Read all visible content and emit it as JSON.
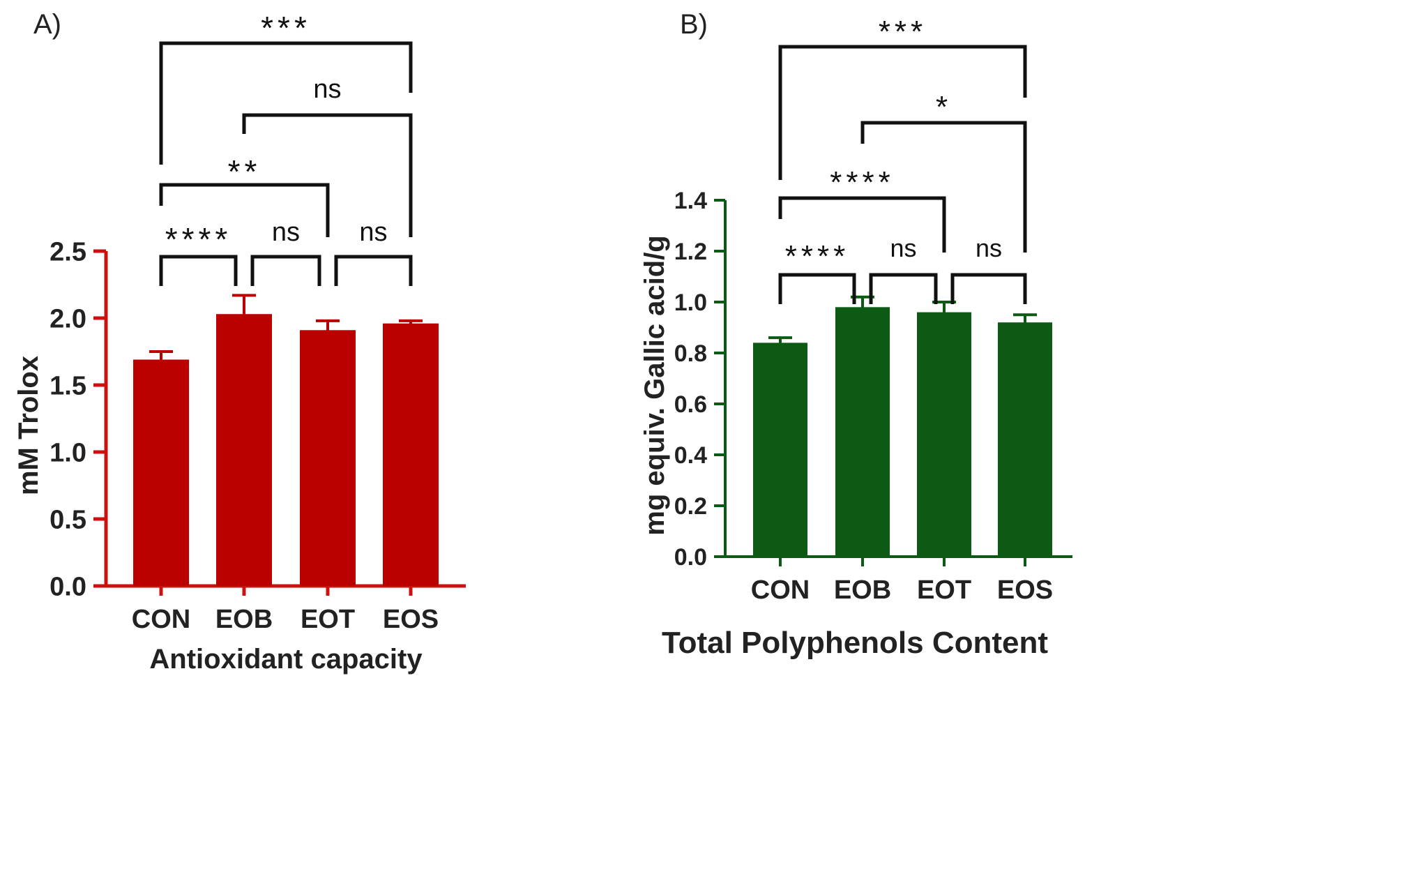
{
  "chart_data": [
    {
      "panel": "A)",
      "type": "bar",
      "categories": [
        "CON",
        "EOB",
        "EOT",
        "EOS"
      ],
      "values": [
        1.69,
        2.03,
        1.91,
        1.96
      ],
      "errors": [
        0.06,
        0.14,
        0.07,
        0.02
      ],
      "xlabel": "Antioxidant capacity",
      "ylabel": "mM Trolox",
      "ylim": [
        0,
        2.5
      ],
      "yticks": [
        0.0,
        0.5,
        1.0,
        1.5,
        2.0,
        2.5
      ],
      "ytick_labels": [
        "0.0",
        "0.5",
        "1.0",
        "1.5",
        "2.0",
        "2.5"
      ],
      "colors": {
        "bar": "#bb0000",
        "axis": "#cc1111"
      },
      "comparisons": [
        {
          "from": 0,
          "to": 1,
          "label": "****"
        },
        {
          "from": 1,
          "to": 2,
          "label": "ns"
        },
        {
          "from": 2,
          "to": 3,
          "label": "ns"
        },
        {
          "from": 0,
          "to": 2,
          "label": "**"
        },
        {
          "from": 1,
          "to": 3,
          "label": "ns"
        },
        {
          "from": 0,
          "to": 3,
          "label": "***"
        }
      ]
    },
    {
      "panel": "B)",
      "type": "bar",
      "categories": [
        "CON",
        "EOB",
        "EOT",
        "EOS"
      ],
      "values": [
        0.84,
        0.98,
        0.96,
        0.92
      ],
      "errors": [
        0.02,
        0.04,
        0.04,
        0.03
      ],
      "xlabel": "Total Polyphenols Content",
      "ylabel": "mg equiv. Gallic acid/g",
      "ylim": [
        0,
        1.4
      ],
      "yticks": [
        0.0,
        0.2,
        0.4,
        0.6,
        0.8,
        1.0,
        1.2,
        1.4
      ],
      "ytick_labels": [
        "0.0",
        "0.2",
        "0.4",
        "0.6",
        "0.8",
        "1.0",
        "1.2",
        "1.4"
      ],
      "colors": {
        "bar": "#0c5a14",
        "axis": "#0c5a14"
      },
      "comparisons": [
        {
          "from": 0,
          "to": 1,
          "label": "****"
        },
        {
          "from": 1,
          "to": 2,
          "label": "ns"
        },
        {
          "from": 2,
          "to": 3,
          "label": "ns"
        },
        {
          "from": 0,
          "to": 2,
          "label": "****"
        },
        {
          "from": 1,
          "to": 3,
          "label": "*"
        },
        {
          "from": 0,
          "to": 3,
          "label": "***"
        }
      ]
    }
  ]
}
